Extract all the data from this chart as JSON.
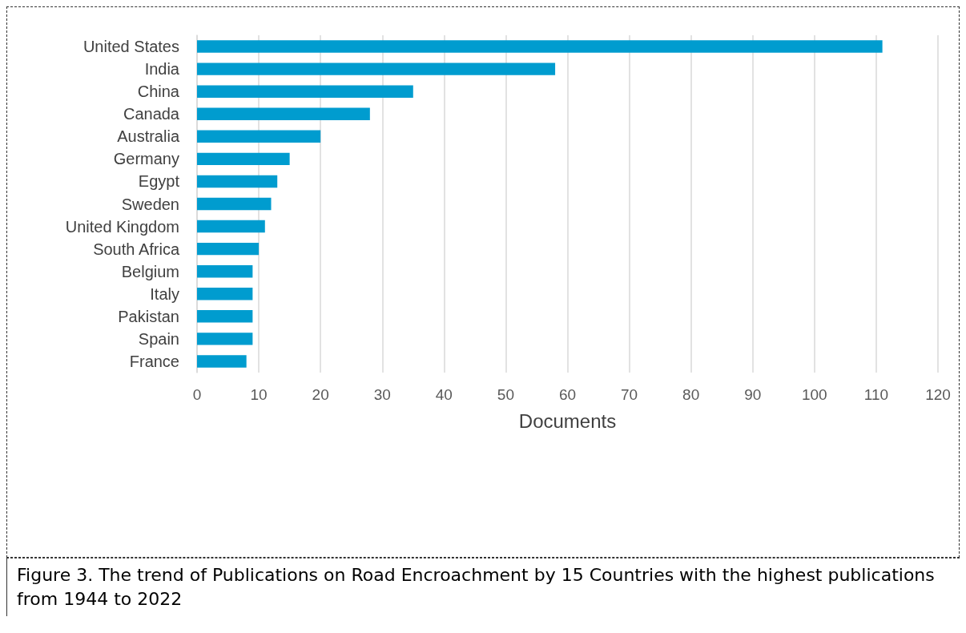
{
  "chart_data": {
    "type": "bar",
    "orientation": "horizontal",
    "xlabel": "Documents",
    "categories": [
      "United States",
      "India",
      "China",
      "Canada",
      "Australia",
      "Germany",
      "Egypt",
      "Sweden",
      "United Kingdom",
      "South Africa",
      "Belgium",
      "Italy",
      "Pakistan",
      "Spain",
      "France"
    ],
    "values": [
      111,
      58,
      35,
      28,
      20,
      15,
      13,
      12,
      11,
      10,
      9,
      9,
      9,
      9,
      8
    ],
    "color": "#009ccf",
    "xlim": [
      0,
      120
    ],
    "xticks": [
      0,
      10,
      20,
      30,
      40,
      50,
      60,
      70,
      80,
      90,
      100,
      110,
      120
    ],
    "grid": "x",
    "annotations": [
      "Figure 3. The trend of Publications on Road Encroachment by 15 Countries with the highest publications from 1944 to 2022"
    ]
  }
}
